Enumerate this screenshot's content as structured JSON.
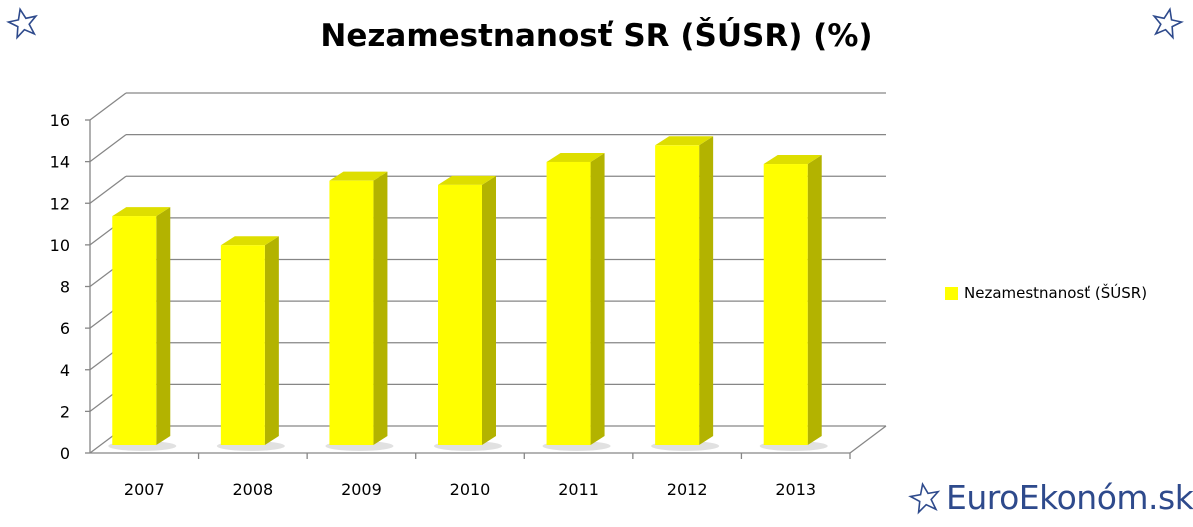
{
  "chart_data": {
    "type": "bar",
    "title": "Nezamestnanosť SR (ŠÚSR) (%)",
    "categories": [
      "2007",
      "2008",
      "2009",
      "2010",
      "2011",
      "2012",
      "2013"
    ],
    "series": [
      {
        "name": "Nezamestnanosť  (ŠÚSR)",
        "values": [
          11.0,
          9.6,
          12.7,
          12.5,
          13.6,
          14.4,
          13.5
        ]
      }
    ],
    "ylim": [
      0,
      16
    ],
    "yticks": [
      "0",
      "2",
      "4",
      "6",
      "8",
      "10",
      "12",
      "14",
      "16"
    ],
    "grid": true,
    "legend": "right",
    "colors": {
      "bar_front": "#ffff00",
      "bar_side": "#b3b300",
      "bar_top": "#dede00"
    }
  },
  "branding": {
    "text": "EuroEkonóm.sk",
    "color": "#2e4a8c"
  },
  "icons": {
    "corner_left": "star-outline-icon",
    "corner_right": "star-outline-icon",
    "brand": "star-outline-icon"
  }
}
